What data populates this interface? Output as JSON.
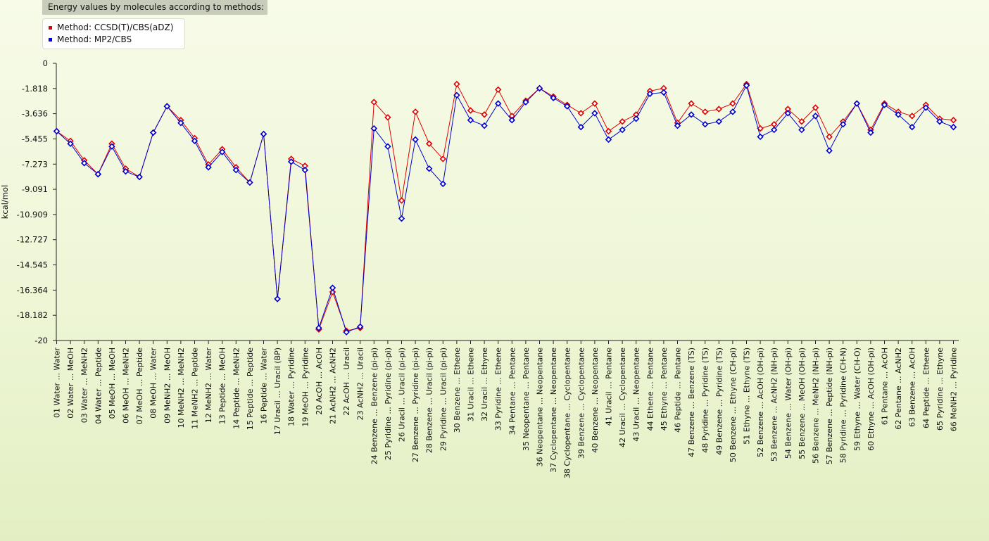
{
  "chart_data": {
    "type": "line",
    "title": "Energy values by molecules according to methods:",
    "ylabel": "kcal/mol",
    "ylim": [
      -20,
      0
    ],
    "yticks": [
      "0",
      "-1.818",
      "-3.636",
      "-5.455",
      "-7.273",
      "-9.091",
      "-10.909",
      "-12.727",
      "-14.545",
      "-16.364",
      "-18.182",
      "-20"
    ],
    "legend_position": "top-left",
    "grid": false,
    "categories": [
      "01 Water ... Water",
      "02 Water ... MeOH",
      "03 Water ... MeNH2",
      "04 Water ... Peptide",
      "05 MeOH ... MeOH",
      "06 MeOH ... MeNH2",
      "07 MeOH ... Peptide",
      "08 MeOH ... Water",
      "09 MeNH2 ... MeOH",
      "10 MeNH2 ... MeNH2",
      "11 MeNH2 ... Peptide",
      "12 MeNH2 ... Water",
      "13 Peptide ... MeOH",
      "14 Peptide ... MeNH2",
      "15 Peptide ... Peptide",
      "16 Peptide ... Water",
      "17 Uracil ... Uracil (BP)",
      "18 Water ... Pyridine",
      "19 MeOH ... Pyridine",
      "20 AcOH ... AcOH",
      "21 AcNH2 ... AcNH2",
      "22 AcOH ... Uracil",
      "23 AcNH2 ... Uracil",
      "24 Benzene ... Benzene (pi-pi)",
      "25 Pyridine ... Pyridine (pi-pi)",
      "26 Uracil ... Uracil (pi-pi)",
      "27 Benzene ... Pyridine (pi-pi)",
      "28 Benzene ... Uracil (pi-pi)",
      "29 Pyridine ... Uracil (pi-pi)",
      "30 Benzene ... Ethene",
      "31 Uracil ... Ethene",
      "32 Uracil ... Ethyne",
      "33 Pyridine ... Ethene",
      "34 Pentane ... Pentane",
      "35 Neopentane ... Pentane",
      "36 Neopentane ... Neopentane",
      "37 Cyclopentane ... Neopentane",
      "38 Cyclopentane ... Cyclopentane",
      "39 Benzene ... Cyclopentane",
      "40 Benzene ... Neopentane",
      "41 Uracil ... Pentane",
      "42 Uracil ... Cyclopentane",
      "43 Uracil ... Neopentane",
      "44 Ethene ... Pentane",
      "45 Ethyne ... Pentane",
      "46 Peptide ... Pentane",
      "47 Benzene ... Benzene (TS)",
      "48 Pyridine ... Pyridine (TS)",
      "49 Benzene ... Pyridine (TS)",
      "50 Benzene ... Ethyne (CH-pi)",
      "51 Ethyne ... Ethyne (TS)",
      "52 Benzene ... AcOH (OH-pi)",
      "53 Benzene ... AcNH2 (NH-pi)",
      "54 Benzene ... Water (OH-pi)",
      "55 Benzene ... MeOH (OH-pi)",
      "56 Benzene ... MeNH2 (NH-pi)",
      "57 Benzene ... Peptide (NH-pi)",
      "58 Pyridine ... Pyridine (CH-N)",
      "59 Ethyne ... Water (CH-O)",
      "60 Ethyne ... AcOH (OH-pi)",
      "61 Pentane ... AcOH",
      "62 Pentane ... AcNH2",
      "63 Benzene ... AcOH",
      "64 Peptide ... Ethene",
      "65 Pyridine ... Ethyne",
      "66 MeNH2 ... Pyridine"
    ],
    "series": [
      {
        "name": "Method:  CCSD(T)/CBS(aDZ)",
        "color": "#e00000",
        "values": [
          -4.9,
          -5.6,
          -7.0,
          -8.0,
          -5.8,
          -7.6,
          -8.2,
          -5.0,
          -3.1,
          -4.1,
          -5.4,
          -7.3,
          -6.2,
          -7.5,
          -8.6,
          -5.1,
          -17.0,
          -6.9,
          -7.4,
          -19.2,
          -16.5,
          -19.3,
          -19.1,
          -2.8,
          -3.9,
          -9.9,
          -3.5,
          -5.8,
          -6.9,
          -1.5,
          -3.4,
          -3.7,
          -1.9,
          -3.8,
          -2.7,
          -1.8,
          -2.4,
          -3.0,
          -3.6,
          -2.9,
          -4.9,
          -4.2,
          -3.7,
          -2.0,
          -1.8,
          -4.3,
          -2.9,
          -3.5,
          -3.3,
          -2.9,
          -1.5,
          -4.7,
          -4.4,
          -3.3,
          -4.2,
          -3.2,
          -5.3,
          -4.2,
          -2.9,
          -4.8,
          -2.9,
          -3.5,
          -3.8,
          -3.0,
          -4.0,
          -4.1
        ]
      },
      {
        "name": "Method:  MP2/CBS",
        "color": "#0000d0",
        "values": [
          -4.9,
          -5.8,
          -7.2,
          -8.0,
          -6.0,
          -7.8,
          -8.2,
          -5.0,
          -3.1,
          -4.3,
          -5.6,
          -7.5,
          -6.4,
          -7.7,
          -8.6,
          -5.1,
          -17.0,
          -7.1,
          -7.7,
          -19.1,
          -16.2,
          -19.4,
          -19.0,
          -4.7,
          -6.0,
          -11.2,
          -5.5,
          -7.6,
          -8.7,
          -2.3,
          -4.1,
          -4.5,
          -2.9,
          -4.1,
          -2.8,
          -1.8,
          -2.5,
          -3.1,
          -4.6,
          -3.6,
          -5.5,
          -4.8,
          -4.0,
          -2.2,
          -2.1,
          -4.5,
          -3.7,
          -4.4,
          -4.2,
          -3.5,
          -1.6,
          -5.3,
          -4.8,
          -3.6,
          -4.8,
          -3.8,
          -6.3,
          -4.4,
          -2.9,
          -5.0,
          -3.0,
          -3.7,
          -4.6,
          -3.2,
          -4.2,
          -4.6
        ]
      }
    ]
  }
}
